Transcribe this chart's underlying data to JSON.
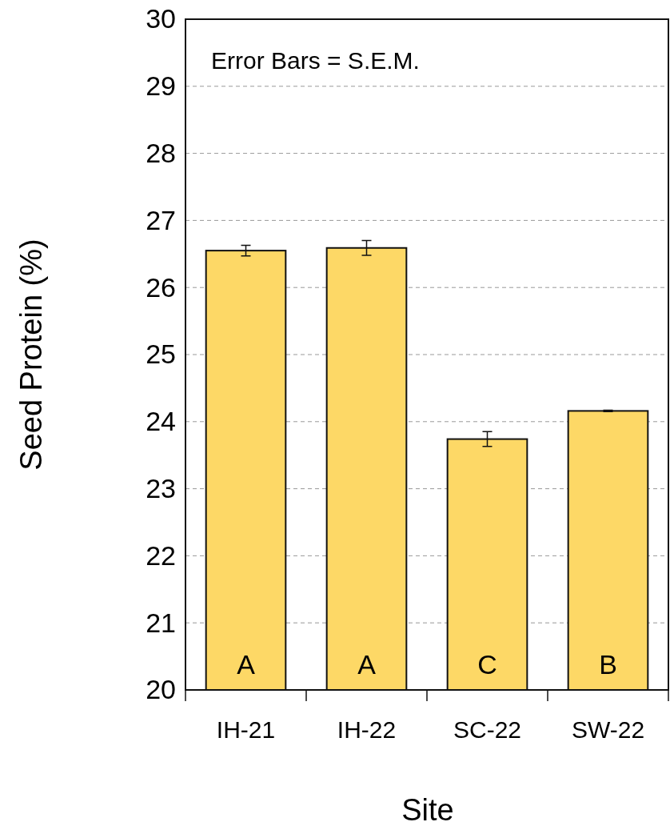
{
  "chart_data": {
    "type": "bar",
    "xlabel": "Site",
    "ylabel": "Seed Protein (%)",
    "categories": [
      "IH-21",
      "IH-22",
      "SC-22",
      "SW-22"
    ],
    "values": [
      26.55,
      26.59,
      23.74,
      24.16
    ],
    "errors": [
      0.08,
      0.11,
      0.11,
      0.01
    ],
    "color": "#fdd866",
    "ylim": [
      20,
      30
    ],
    "yticks": [
      20,
      21,
      22,
      23,
      24,
      25,
      26,
      27,
      28,
      29,
      30
    ],
    "grid": "y",
    "annotations": [
      "Error Bars = S.E.M.",
      "A",
      "A",
      "C",
      "B"
    ]
  }
}
